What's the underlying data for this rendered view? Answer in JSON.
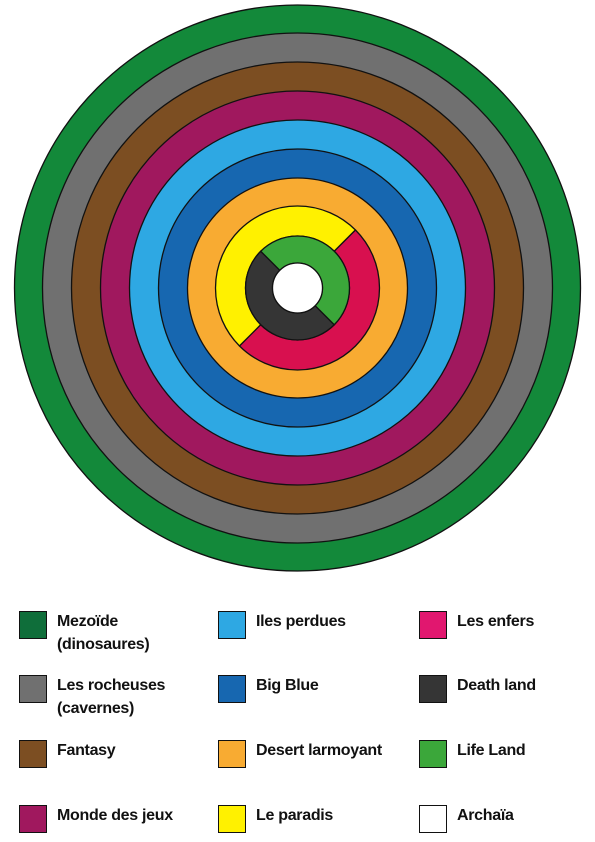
{
  "rings": [
    {
      "name": "Mezoïde (dinosaures)",
      "color": "#13893a"
    },
    {
      "name": "Les rocheuses (cavernes)",
      "color": "#707070"
    },
    {
      "name": "Fantasy",
      "color": "#7c4e22"
    },
    {
      "name": "Monde des jeux",
      "color": "#a0185e"
    },
    {
      "name": "Iles perdues",
      "color": "#2ea8e3"
    },
    {
      "name": "Big Blue",
      "color": "#1767b0"
    },
    {
      "name": "Desert larmoyant",
      "color": "#f8ab32"
    }
  ],
  "inner_sectors": {
    "outer": [
      {
        "name": "Le paradis",
        "color": "#fff100"
      },
      {
        "name": "Les enfers",
        "color": "#d8104f"
      }
    ],
    "inner": [
      {
        "name": "Death land",
        "color": "#353535"
      },
      {
        "name": "Life Land",
        "color": "#3ba73a"
      }
    ],
    "center": {
      "name": "Archaïa",
      "color": "#ffffff"
    }
  },
  "legend": [
    {
      "label": "Mezoïde\n(dinosaures)",
      "color": "#0f6e3a",
      "icon": "mezoide-swatch"
    },
    {
      "label": "Iles perdues",
      "color": "#2ea8e3",
      "icon": "iles-perdues-swatch"
    },
    {
      "label": "Les enfers",
      "color": "#e1176f",
      "icon": "les-enfers-swatch"
    },
    {
      "label": "Les rocheuses\n(cavernes)",
      "color": "#707070",
      "icon": "les-rocheuses-swatch"
    },
    {
      "label": "Big Blue",
      "color": "#1767b0",
      "icon": "big-blue-swatch"
    },
    {
      "label": "Death land",
      "color": "#353535",
      "icon": "death-land-swatch"
    },
    {
      "label": "Fantasy",
      "color": "#7c4e22",
      "icon": "fantasy-swatch"
    },
    {
      "label": "Desert larmoyant",
      "color": "#f8ab32",
      "icon": "desert-larmoyant-swatch"
    },
    {
      "label": "Life Land",
      "color": "#3ba73a",
      "icon": "life-land-swatch"
    },
    {
      "label": "Monde des jeux",
      "color": "#a0185e",
      "icon": "monde-des-jeux-swatch"
    },
    {
      "label": "Le paradis",
      "color": "#fff100",
      "icon": "le-paradis-swatch"
    },
    {
      "label": "Archaïa",
      "color": "#ffffff",
      "icon": "archaia-swatch"
    }
  ]
}
